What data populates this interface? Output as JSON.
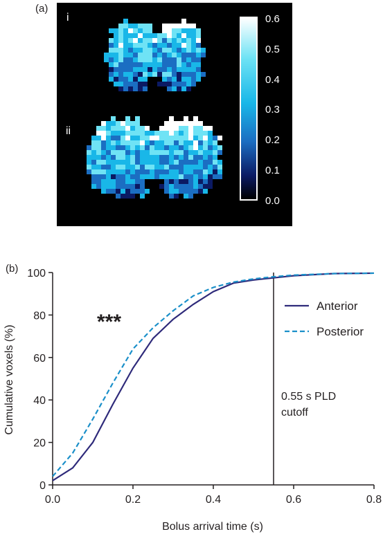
{
  "panel_a": {
    "label": "(a)",
    "sub_labels": [
      "i",
      "ii"
    ],
    "colorbar": {
      "title": "Bolus arrival time (s)",
      "ticks": [
        "0.6",
        "0.5",
        "0.4",
        "0.3",
        "0.2",
        "0.1",
        "0.0"
      ],
      "range": [
        0.0,
        0.6
      ],
      "colors": [
        "#000000",
        "#0b1a63",
        "#1b6ec2",
        "#19b7e8",
        "#6fe3f5",
        "#ffffff"
      ]
    }
  },
  "panel_b": {
    "label": "(b)",
    "significance": "***",
    "annotation_line1": "0.55 s PLD",
    "annotation_line2": "cutoff"
  },
  "chart_data": {
    "type": "line",
    "xlabel": "Bolus arrival time (s)",
    "ylabel": "Cumulative voxels (%)",
    "xlim": [
      0.0,
      0.8
    ],
    "ylim": [
      0,
      100
    ],
    "x_ticks": [
      "0.0",
      "0.2",
      "0.4",
      "0.6",
      "0.8"
    ],
    "y_ticks": [
      "0",
      "20",
      "40",
      "60",
      "80",
      "100"
    ],
    "grid": false,
    "legend_position": "right",
    "vline": 0.55,
    "series": [
      {
        "name": "Anterior",
        "style": "solid",
        "color": "#2e2a7a",
        "x": [
          0.0,
          0.05,
          0.1,
          0.15,
          0.2,
          0.25,
          0.3,
          0.35,
          0.4,
          0.45,
          0.5,
          0.55,
          0.6,
          0.7,
          0.8
        ],
        "y": [
          2,
          8,
          20,
          38,
          55,
          69,
          78,
          85,
          91,
          95,
          96.5,
          97.5,
          98.5,
          99.5,
          99.7
        ]
      },
      {
        "name": "Posterior",
        "style": "dashed",
        "color": "#1a8fc9",
        "x": [
          0.0,
          0.05,
          0.1,
          0.15,
          0.2,
          0.25,
          0.3,
          0.35,
          0.4,
          0.45,
          0.5,
          0.55,
          0.6,
          0.7,
          0.8
        ],
        "y": [
          4,
          15,
          31,
          48,
          64,
          74,
          82,
          89,
          93,
          95.5,
          97,
          98,
          98.8,
          99.5,
          99.7
        ]
      }
    ]
  }
}
